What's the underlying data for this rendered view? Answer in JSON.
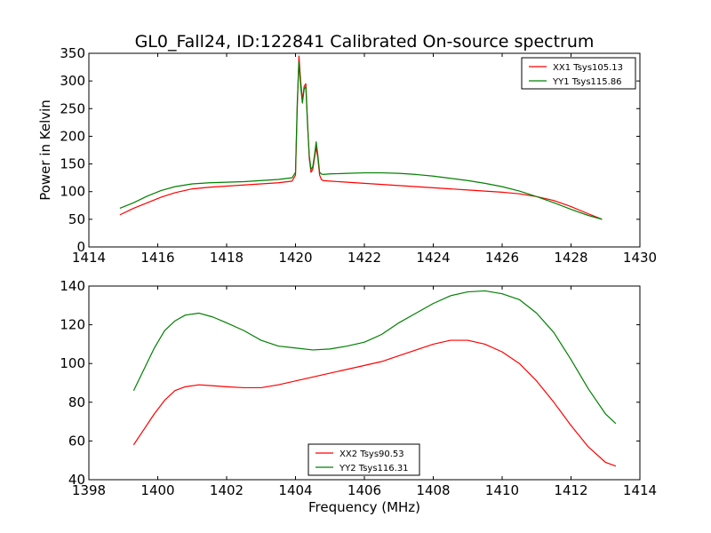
{
  "figure_title": "GL0_Fall24, ID:122841 Calibrated On-source spectrum",
  "chart_data": [
    {
      "type": "line",
      "title": "GL0_Fall24, ID:122841 Calibrated On-source spectrum",
      "xlabel": "",
      "ylabel": "Power in Kelvin",
      "xlim": [
        1414,
        1430
      ],
      "ylim": [
        0,
        350
      ],
      "xticks": [
        "1414",
        "1416",
        "1418",
        "1420",
        "1422",
        "1424",
        "1426",
        "1428",
        "1430"
      ],
      "yticks": [
        "0",
        "50",
        "100",
        "150",
        "200",
        "250",
        "300",
        "350"
      ],
      "legend_position": "upper right",
      "grid": false,
      "series": [
        {
          "name": "XX1 Tsys105.13",
          "color": "#ff0000",
          "x": [
            1414.9,
            1415.3,
            1415.7,
            1416.1,
            1416.5,
            1417.0,
            1417.5,
            1418.0,
            1418.5,
            1419.0,
            1419.5,
            1419.9,
            1420.0,
            1420.05,
            1420.1,
            1420.15,
            1420.2,
            1420.25,
            1420.3,
            1420.35,
            1420.4,
            1420.45,
            1420.5,
            1420.55,
            1420.6,
            1420.65,
            1420.7,
            1420.75,
            1420.8,
            1421.0,
            1421.5,
            1422.0,
            1422.5,
            1423.0,
            1423.5,
            1424.0,
            1424.5,
            1425.0,
            1425.5,
            1426.0,
            1426.5,
            1427.0,
            1427.5,
            1428.0,
            1428.5,
            1428.9
          ],
          "y": [
            58,
            70,
            80,
            90,
            98,
            105,
            108,
            110,
            112,
            114,
            116,
            119,
            130,
            250,
            345,
            300,
            265,
            290,
            295,
            225,
            160,
            135,
            140,
            160,
            180,
            160,
            130,
            122,
            120,
            119,
            117,
            115,
            113,
            111,
            109,
            107,
            105,
            103,
            101,
            99,
            96,
            91,
            84,
            73,
            60,
            50
          ]
        },
        {
          "name": "YY1 Tsys115.86",
          "color": "#008000",
          "x": [
            1414.9,
            1415.3,
            1415.7,
            1416.1,
            1416.5,
            1417.0,
            1417.5,
            1418.0,
            1418.5,
            1419.0,
            1419.5,
            1419.9,
            1420.0,
            1420.05,
            1420.1,
            1420.15,
            1420.2,
            1420.25,
            1420.3,
            1420.35,
            1420.4,
            1420.45,
            1420.5,
            1420.55,
            1420.6,
            1420.65,
            1420.7,
            1420.75,
            1420.8,
            1421.0,
            1421.5,
            1422.0,
            1422.5,
            1423.0,
            1423.5,
            1424.0,
            1424.5,
            1425.0,
            1425.5,
            1426.0,
            1426.5,
            1427.0,
            1427.5,
            1428.0,
            1428.5,
            1428.9
          ],
          "y": [
            70,
            80,
            92,
            102,
            109,
            114,
            116,
            117,
            118,
            120,
            122,
            125,
            135,
            260,
            335,
            290,
            260,
            285,
            290,
            220,
            165,
            140,
            145,
            165,
            190,
            165,
            135,
            132,
            131,
            132,
            133,
            134,
            134,
            133,
            131,
            128,
            124,
            120,
            115,
            109,
            101,
            91,
            80,
            68,
            57,
            50
          ]
        }
      ]
    },
    {
      "type": "line",
      "title": "",
      "xlabel": "Frequency (MHz)",
      "ylabel": "",
      "xlim": [
        1398,
        1414
      ],
      "ylim": [
        40,
        140
      ],
      "xticks": [
        "1398",
        "1400",
        "1402",
        "1404",
        "1406",
        "1408",
        "1410",
        "1412",
        "1414"
      ],
      "yticks": [
        "40",
        "60",
        "80",
        "100",
        "120",
        "140"
      ],
      "legend_position": "lower center",
      "grid": false,
      "series": [
        {
          "name": "XX2 Tsys90.53",
          "color": "#ff0000",
          "x": [
            1399.3,
            1399.6,
            1399.9,
            1400.2,
            1400.5,
            1400.8,
            1401.2,
            1401.6,
            1402.0,
            1402.5,
            1403.0,
            1403.5,
            1404.0,
            1404.5,
            1405.0,
            1405.5,
            1406.0,
            1406.5,
            1407.0,
            1407.5,
            1408.0,
            1408.5,
            1409.0,
            1409.5,
            1410.0,
            1410.5,
            1411.0,
            1411.5,
            1412.0,
            1412.5,
            1413.0,
            1413.3
          ],
          "y": [
            58,
            66,
            74,
            81,
            86,
            88,
            89,
            88.5,
            88,
            87.5,
            87.5,
            89,
            91,
            93,
            95,
            97,
            99,
            101,
            104,
            107,
            110,
            112,
            112,
            110,
            106,
            100,
            91,
            80,
            68,
            57,
            49,
            47
          ]
        },
        {
          "name": "YY2 Tsys116.31",
          "color": "#008000",
          "x": [
            1399.3,
            1399.6,
            1399.9,
            1400.2,
            1400.5,
            1400.8,
            1401.2,
            1401.6,
            1402.0,
            1402.5,
            1403.0,
            1403.5,
            1404.0,
            1404.5,
            1405.0,
            1405.5,
            1406.0,
            1406.5,
            1407.0,
            1407.5,
            1408.0,
            1408.5,
            1409.0,
            1409.5,
            1410.0,
            1410.5,
            1411.0,
            1411.5,
            1412.0,
            1412.5,
            1413.0,
            1413.3
          ],
          "y": [
            86,
            97,
            108,
            117,
            122,
            125,
            126,
            124,
            121,
            117,
            112,
            109,
            108,
            107,
            107.5,
            109,
            111,
            115,
            121,
            126,
            131,
            135,
            137,
            137.5,
            136,
            133,
            126,
            116,
            102,
            87,
            74,
            69
          ]
        }
      ]
    }
  ]
}
